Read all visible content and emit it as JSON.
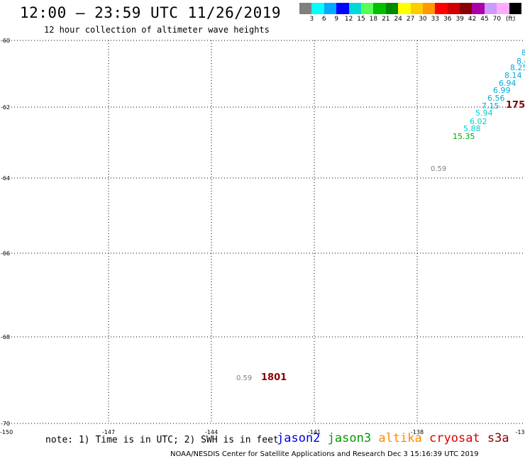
{
  "title": "12:00 – 23:59 UTC 11/26/2019",
  "subtitle": "12 hour collection of altimeter wave heights",
  "colorbar": {
    "colors": [
      "#808080",
      "#00ffff",
      "#00aaff",
      "#0000ff",
      "#00d8d8",
      "#55ff55",
      "#00c000",
      "#008800",
      "#ffff00",
      "#ffcc00",
      "#ff9900",
      "#ff0000",
      "#d00000",
      "#880000",
      "#aa00aa",
      "#cc99ff",
      "#ffaaff",
      "#000000"
    ],
    "labels": [
      "3",
      "6",
      "9",
      "12",
      "15",
      "18",
      "21",
      "24",
      "27",
      "30",
      "33",
      "36",
      "39",
      "42",
      "45",
      "70"
    ],
    "unit": "(ft)"
  },
  "axes": {
    "lat_labels": [
      "-60",
      "-62",
      "-64",
      "-66",
      "-68",
      "-70"
    ],
    "lon_labels": [
      "-150",
      "-147",
      "-144",
      "-141",
      "-138",
      "-13"
    ]
  },
  "observations": [
    {
      "text": "8",
      "color": "#00aadd"
    },
    {
      "text": "8.4",
      "color": "#00aadd"
    },
    {
      "text": "8.25",
      "color": "#00aadd"
    },
    {
      "text": "8.14",
      "color": "#00aadd"
    },
    {
      "text": "6.94",
      "color": "#00aadd"
    },
    {
      "text": "6.99",
      "color": "#00aadd"
    },
    {
      "text": "6.56",
      "color": "#00aadd"
    },
    {
      "text": "7.15",
      "color": "#00aadd"
    },
    {
      "text": "175",
      "color": "#880000"
    },
    {
      "text": "5.94",
      "color": "#00cccc"
    },
    {
      "text": "6.02",
      "color": "#00cccc"
    },
    {
      "text": "5.88",
      "color": "#00cccc"
    },
    {
      "text": "15.35",
      "color": "#00aa00"
    },
    {
      "text": "0.59",
      "color": "#808080"
    },
    {
      "text": "0.59",
      "color": "#808080"
    },
    {
      "text": "1801",
      "color": "#880000"
    }
  ],
  "note": "note: 1) Time is in UTC; 2) SWH is in feet",
  "legend": [
    {
      "label": "jason2",
      "color": "#0000dd"
    },
    {
      "label": "jason3",
      "color": "#009900"
    },
    {
      "label": "altika",
      "color": "#ff8800"
    },
    {
      "label": "cryosat",
      "color": "#dd0000"
    },
    {
      "label": "s3a",
      "color": "#880000"
    }
  ],
  "footer": "NOAA/NESDIS Center for Satellite Applications and Research    Dec  3 15:16:39 UTC 2019"
}
